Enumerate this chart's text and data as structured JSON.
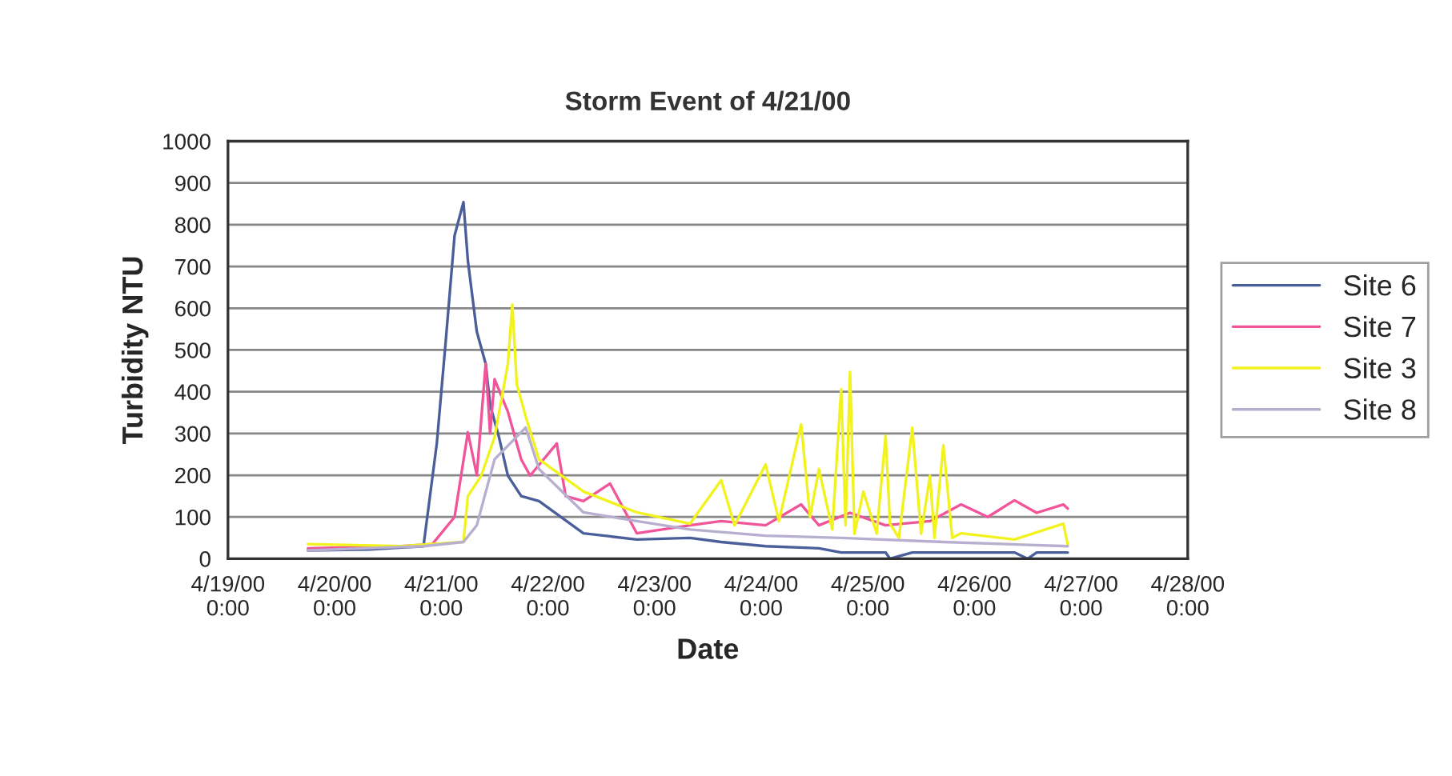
{
  "chart_data": {
    "type": "line",
    "title": "Storm Event of 4/21/00",
    "xlabel": "Date",
    "ylabel": "Turbidity NTU",
    "xlim": [
      "2000-04-19T00:00",
      "2000-04-28T00:00"
    ],
    "xticks": [
      {
        "value": "2000-04-19T00:00",
        "label": "4/19/00\n0:00"
      },
      {
        "value": "2000-04-20T00:00",
        "label": "4/20/00\n0:00"
      },
      {
        "value": "2000-04-21T00:00",
        "label": "4/21/00\n0:00"
      },
      {
        "value": "2000-04-22T00:00",
        "label": "4/22/00\n0:00"
      },
      {
        "value": "2000-04-23T00:00",
        "label": "4/23/00\n0:00"
      },
      {
        "value": "2000-04-24T00:00",
        "label": "4/24/00\n0:00"
      },
      {
        "value": "2000-04-25T00:00",
        "label": "4/25/00\n0:00"
      },
      {
        "value": "2000-04-26T00:00",
        "label": "4/26/00\n0:00"
      },
      {
        "value": "2000-04-27T00:00",
        "label": "4/27/00\n0:00"
      },
      {
        "value": "2000-04-28T00:00",
        "label": "4/28/00\n0:00"
      }
    ],
    "ylim": [
      0,
      1000
    ],
    "yticks": [
      0,
      100,
      200,
      300,
      400,
      500,
      600,
      700,
      800,
      900,
      1000
    ],
    "grid": "y",
    "legend": "right",
    "line_style": "solid",
    "series": [
      {
        "name": "Site 6",
        "color": "#4a5e9a",
        "x": [
          "2000-04-19T18:00",
          "2000-04-20T08:00",
          "2000-04-20T20:00",
          "2000-04-20T23:00",
          "2000-04-21T01:00",
          "2000-04-21T03:00",
          "2000-04-21T05:00",
          "2000-04-21T06:00",
          "2000-04-21T08:00",
          "2000-04-21T10:00",
          "2000-04-21T11:00",
          "2000-04-21T13:00",
          "2000-04-21T15:00",
          "2000-04-21T18:00",
          "2000-04-21T22:00",
          "2000-04-22T08:00",
          "2000-04-22T20:00",
          "2000-04-23T08:00",
          "2000-04-23T15:00",
          "2000-04-24T01:00",
          "2000-04-24T13:00",
          "2000-04-24T18:00",
          "2000-04-25T04:00",
          "2000-04-25T05:00",
          "2000-04-25T10:00",
          "2000-04-25T17:00",
          "2000-04-26T09:00",
          "2000-04-26T12:00",
          "2000-04-26T14:00",
          "2000-04-26T21:00"
        ],
        "values": [
          20,
          22,
          30,
          276,
          520,
          774,
          854,
          713,
          544,
          467,
          368,
          291,
          199,
          150,
          138,
          61,
          46,
          50,
          40,
          30,
          25,
          15,
          15,
          0,
          15,
          15,
          15,
          0,
          15,
          15
        ]
      },
      {
        "name": "Site 7",
        "color": "#f0559a",
        "x": [
          "2000-04-19T18:00",
          "2000-04-20T15:00",
          "2000-04-20T22:00",
          "2000-04-21T03:00",
          "2000-04-21T06:00",
          "2000-04-21T08:00",
          "2000-04-21T10:00",
          "2000-04-21T11:00",
          "2000-04-21T12:00",
          "2000-04-21T15:00",
          "2000-04-21T18:00",
          "2000-04-21T20:00",
          "2000-04-22T02:00",
          "2000-04-22T04:00",
          "2000-04-22T08:00",
          "2000-04-22T14:00",
          "2000-04-22T20:00",
          "2000-04-23T08:00",
          "2000-04-23T15:00",
          "2000-04-24T01:00",
          "2000-04-24T09:00",
          "2000-04-24T13:00",
          "2000-04-24T20:00",
          "2000-04-25T04:00",
          "2000-04-25T14:00",
          "2000-04-25T21:00",
          "2000-04-26T03:00",
          "2000-04-26T09:00",
          "2000-04-26T14:00",
          "2000-04-26T20:00",
          "2000-04-26T21:00"
        ],
        "values": [
          25,
          30,
          35,
          100,
          303,
          200,
          467,
          300,
          430,
          352,
          238,
          199,
          276,
          150,
          138,
          180,
          61,
          80,
          90,
          80,
          130,
          80,
          110,
          80,
          90,
          130,
          100,
          140,
          110,
          130,
          120
        ]
      },
      {
        "name": "Site 3",
        "color": "#f2f21e",
        "x": [
          "2000-04-19T18:00",
          "2000-04-20T15:00",
          "2000-04-21T05:00",
          "2000-04-21T06:00",
          "2000-04-21T09:00",
          "2000-04-21T12:00",
          "2000-04-21T15:00",
          "2000-04-21T16:00",
          "2000-04-21T17:00",
          "2000-04-21T19:00",
          "2000-04-21T22:00",
          "2000-04-22T08:00",
          "2000-04-22T20:00",
          "2000-04-23T08:00",
          "2000-04-23T15:00",
          "2000-04-23T18:00",
          "2000-04-24T01:00",
          "2000-04-24T04:00",
          "2000-04-24T09:00",
          "2000-04-24T11:00",
          "2000-04-24T13:00",
          "2000-04-24T16:00",
          "2000-04-24T18:00",
          "2000-04-24T19:00",
          "2000-04-24T20:00",
          "2000-04-24T21:00",
          "2000-04-24T23:00",
          "2000-04-25T02:00",
          "2000-04-25T04:00",
          "2000-04-25T05:00",
          "2000-04-25T07:00",
          "2000-04-25T10:00",
          "2000-04-25T12:00",
          "2000-04-25T14:00",
          "2000-04-25T15:00",
          "2000-04-25T17:00",
          "2000-04-25T19:00",
          "2000-04-25T21:00",
          "2000-04-26T09:00",
          "2000-04-26T20:00",
          "2000-04-26T21:00"
        ],
        "values": [
          35,
          30,
          40,
          150,
          199,
          291,
          467,
          609,
          418,
          341,
          238,
          161,
          111,
          84,
          188,
          80,
          226,
          90,
          322,
          100,
          215,
          70,
          406,
          80,
          448,
          60,
          161,
          60,
          295,
          84,
          50,
          314,
          60,
          199,
          50,
          272,
          50,
          61,
          46,
          84,
          34
        ]
      },
      {
        "name": "Site 8",
        "color": "#b8aed0",
        "x": [
          "2000-04-19T18:00",
          "2000-04-20T20:00",
          "2000-04-21T05:00",
          "2000-04-21T08:00",
          "2000-04-21T12:00",
          "2000-04-21T19:00",
          "2000-04-21T22:00",
          "2000-04-22T08:00",
          "2000-04-22T20:00",
          "2000-04-23T08:00",
          "2000-04-24T01:00",
          "2000-04-24T18:00",
          "2000-04-25T17:00",
          "2000-04-26T21:00"
        ],
        "values": [
          20,
          30,
          40,
          80,
          238,
          314,
          215,
          111,
          90,
          70,
          55,
          50,
          40,
          30
        ]
      }
    ]
  }
}
